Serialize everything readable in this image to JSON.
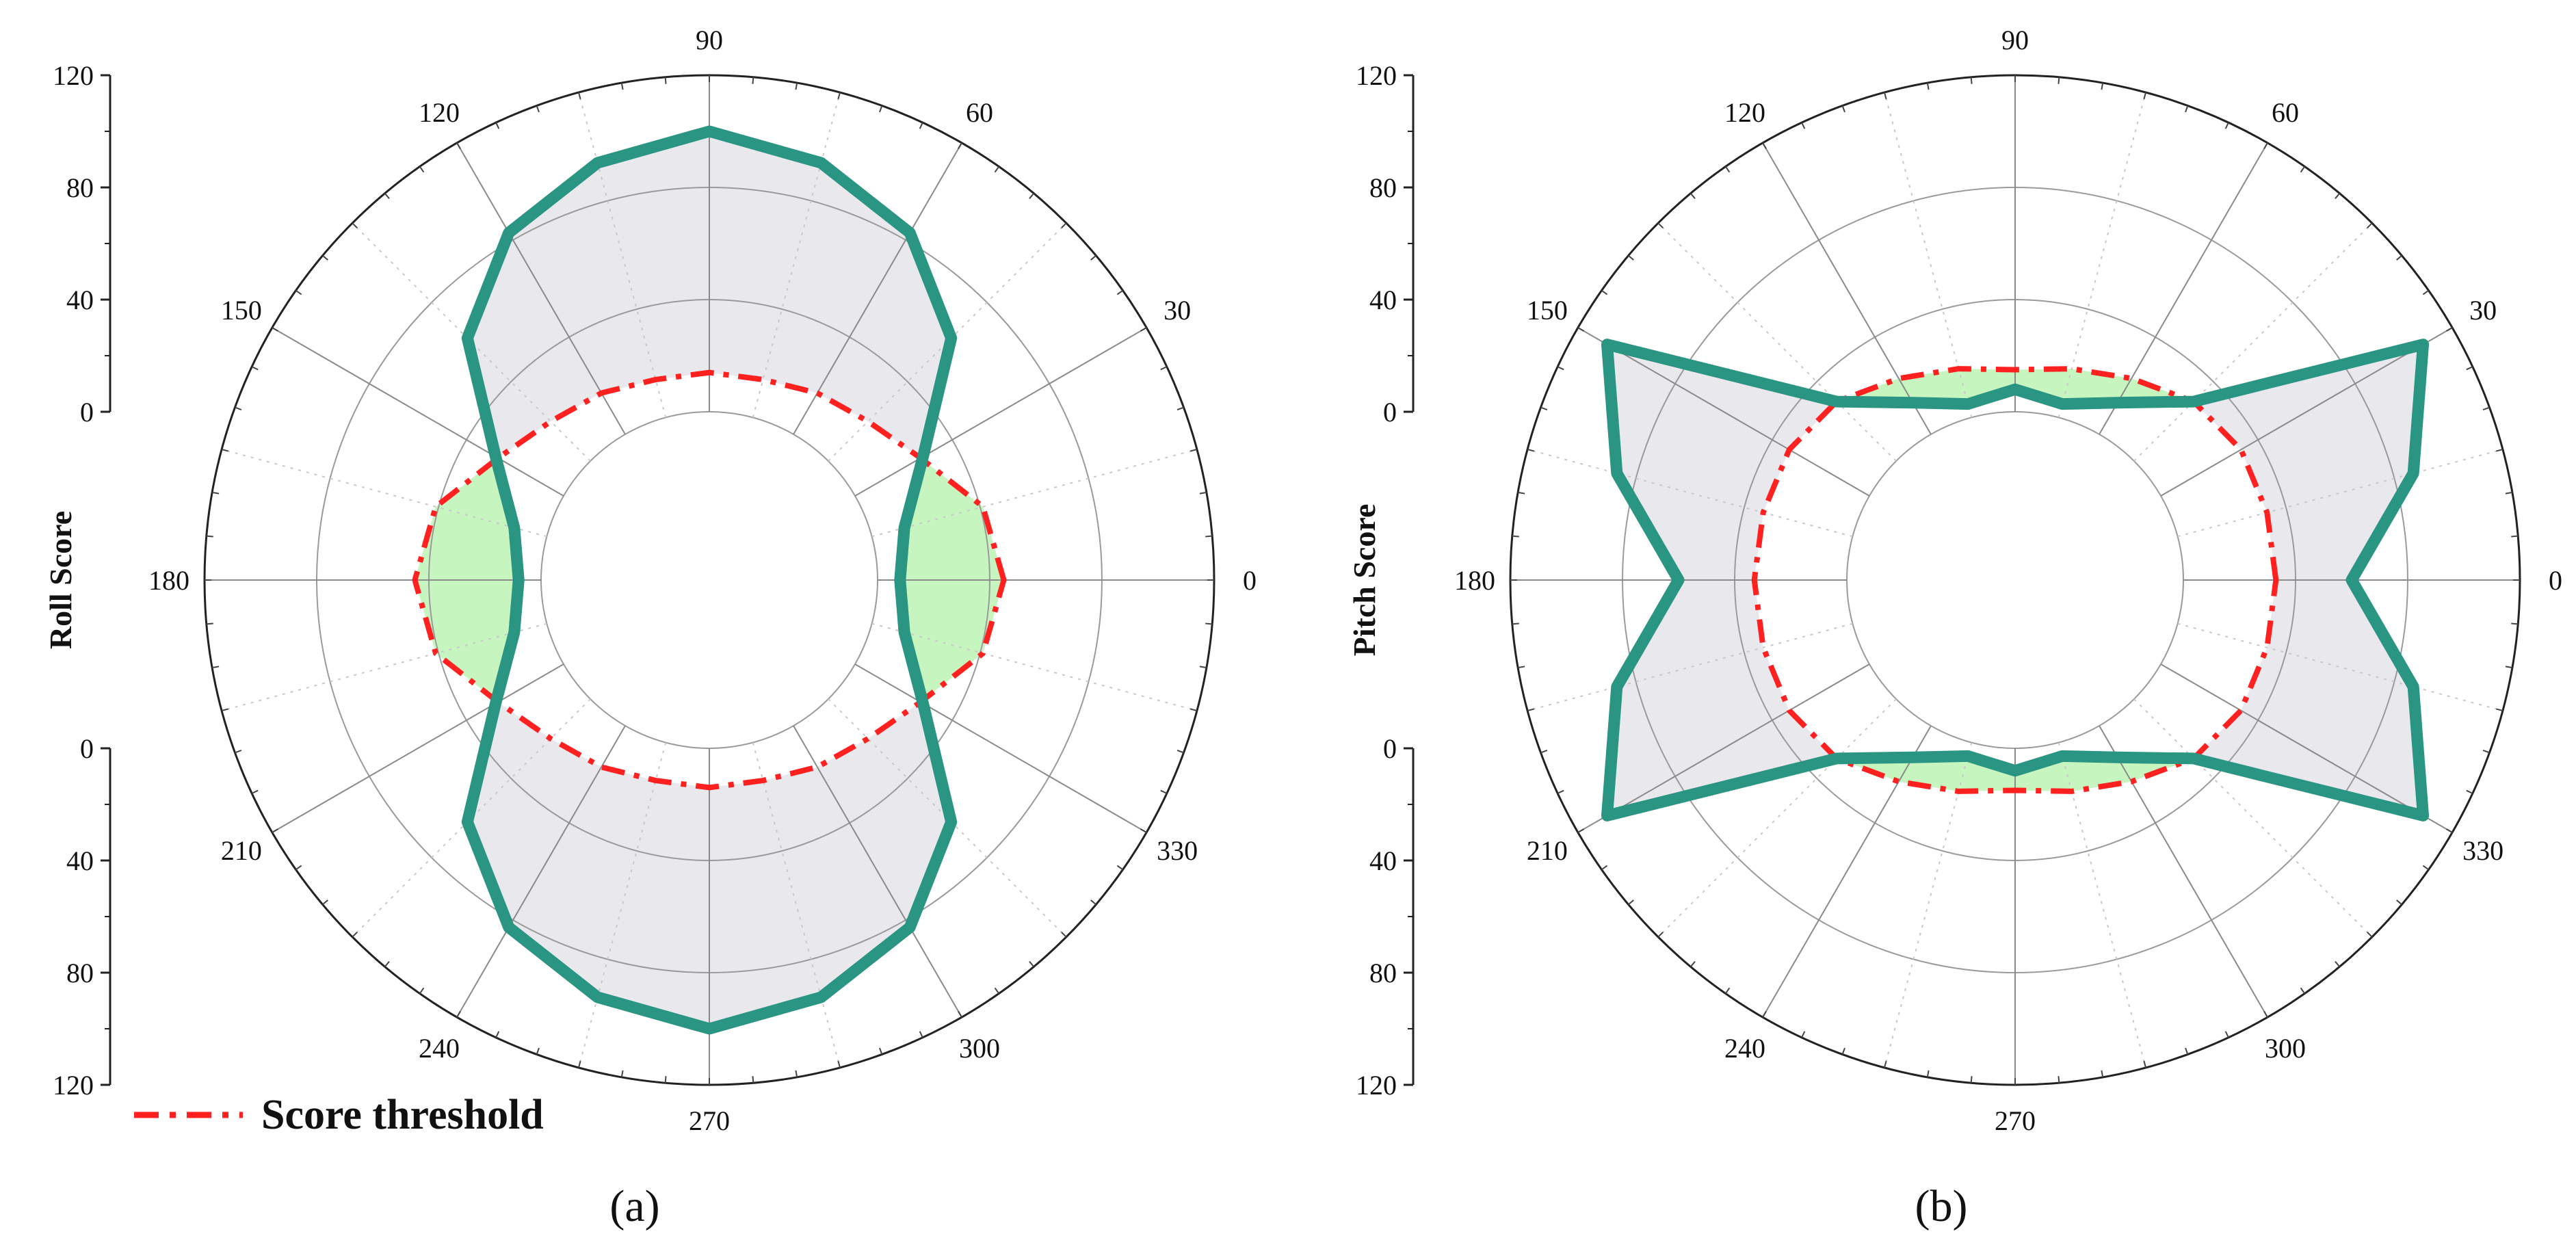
{
  "chart_data": [
    {
      "type": "polar-line",
      "panel_label": "(a)",
      "ylabel": "Roll Score",
      "r_axis_ticks": [
        "0",
        "40",
        "80",
        "120"
      ],
      "angle_unit": "degrees",
      "angles": [
        0,
        15,
        30,
        45,
        60,
        75,
        90,
        105,
        120,
        135,
        150,
        165,
        180,
        195,
        210,
        225,
        240,
        255,
        270,
        285,
        300,
        315,
        330,
        345
      ],
      "angle_labels": [
        "0",
        "30",
        "60",
        "90",
        "120",
        "150",
        "180",
        "210",
        "240",
        "270",
        "300",
        "330"
      ],
      "series": [
        {
          "name": "Roll score",
          "color": "#2a9583",
          "values": [
            8,
            12,
            28,
            62,
            83,
            94,
            100,
            94,
            83,
            62,
            28,
            12,
            8,
            12,
            28,
            62,
            83,
            94,
            100,
            94,
            83,
            62,
            28,
            12
          ]
        },
        {
          "name": "Score threshold",
          "color": "#ff2020",
          "values": [
            45,
            41,
            27,
            20,
            17,
            14,
            14,
            14,
            17,
            20,
            27,
            41,
            45,
            41,
            27,
            20,
            17,
            14,
            14,
            14,
            17,
            20,
            27,
            41
          ]
        }
      ],
      "fills": {
        "above_threshold": "#e8e8ed",
        "below_threshold": "#c6f5c0"
      },
      "legend": {
        "label": "Score threshold",
        "position": "bottom-left"
      }
    },
    {
      "type": "polar-line",
      "panel_label": "(b)",
      "ylabel": "Pitch Score",
      "r_axis_ticks": [
        "0",
        "40",
        "80",
        "120"
      ],
      "angle_unit": "degrees",
      "angles": [
        0,
        15,
        30,
        45,
        60,
        75,
        90,
        105,
        120,
        135,
        150,
        165,
        180,
        195,
        210,
        225,
        240,
        255,
        270,
        285,
        300,
        315,
        330,
        345
      ],
      "angle_labels": [
        "0",
        "30",
        "60",
        "90",
        "120",
        "150",
        "180",
        "210",
        "240",
        "270",
        "300",
        "330"
      ],
      "series": [
        {
          "name": "Pitch score",
          "color": "#2a9583",
          "values": [
            60,
            87,
            108,
            30,
            13,
            5,
            8,
            5,
            13,
            30,
            108,
            87,
            60,
            87,
            108,
            30,
            13,
            5,
            8,
            5,
            13,
            30,
            108,
            87
          ]
        },
        {
          "name": "Score threshold",
          "color": "#ff2020",
          "values": [
            33,
            33,
            33,
            30,
            23,
            18,
            15,
            18,
            23,
            30,
            33,
            33,
            33,
            33,
            33,
            30,
            23,
            18,
            15,
            18,
            23,
            30,
            33,
            33
          ]
        }
      ],
      "fills": {
        "above_threshold": "#e8e8ed",
        "below_threshold": "#c6f5c0"
      }
    }
  ]
}
